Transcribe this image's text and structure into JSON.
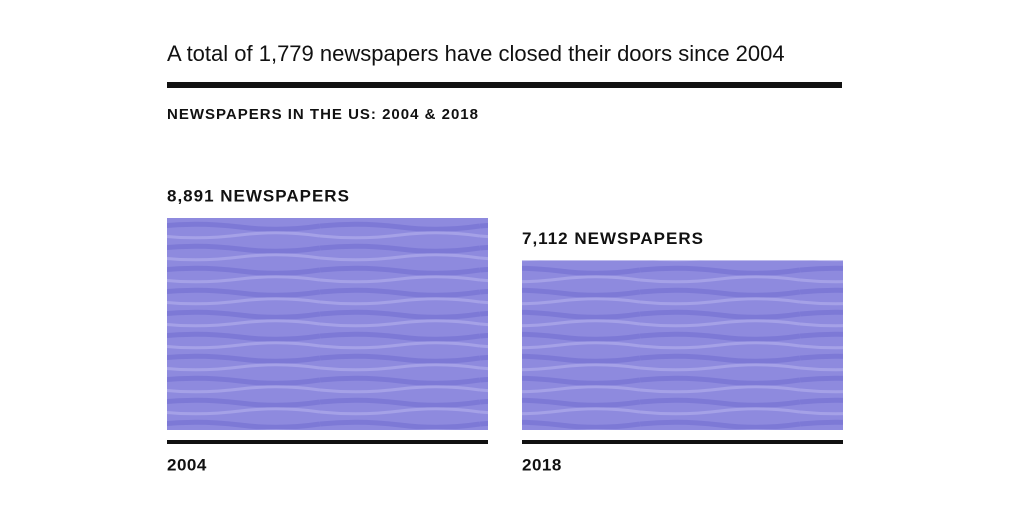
{
  "chart_data": {
    "type": "bar",
    "title": "A total of 1,779 newspapers have closed their doors since 2004",
    "subtitle": "NEWSPAPERS IN THE US: 2004 & 2018",
    "categories": [
      "2004",
      "2018"
    ],
    "values": [
      8891,
      7112
    ],
    "value_labels": [
      "8,891 NEWSPAPERS",
      "7,112 NEWSPAPERS"
    ],
    "color": "#8e8ade"
  }
}
